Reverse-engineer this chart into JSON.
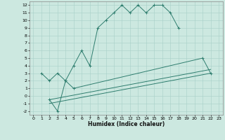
{
  "title": "",
  "xlabel": "Humidex (Indice chaleur)",
  "background_color": "#cce8e0",
  "line_color": "#2e7d6e",
  "grid_color": "#a8cfc8",
  "xlim": [
    -0.5,
    23.5
  ],
  "ylim": [
    -2.5,
    12.5
  ],
  "xticks": [
    0,
    1,
    2,
    3,
    4,
    5,
    6,
    7,
    8,
    9,
    10,
    11,
    12,
    13,
    14,
    15,
    16,
    17,
    18,
    19,
    20,
    21,
    22,
    23
  ],
  "yticks": [
    -2,
    -1,
    0,
    1,
    2,
    3,
    4,
    5,
    6,
    7,
    8,
    9,
    10,
    11,
    12
  ],
  "line1_x": [
    1,
    2,
    3,
    4,
    5,
    6,
    7,
    8,
    9,
    10,
    11,
    12,
    13,
    14,
    15,
    16,
    17,
    18
  ],
  "line1_y": [
    3,
    2,
    3,
    2,
    4,
    6,
    4,
    9,
    10,
    11,
    12,
    11,
    12,
    11,
    12,
    12,
    11,
    9
  ],
  "line2_x": [
    2,
    3,
    4,
    5,
    21,
    22
  ],
  "line2_y": [
    -0.5,
    -2,
    2,
    1,
    5,
    3
  ],
  "line3_x": [
    2,
    22
  ],
  "line3_y": [
    -0.5,
    3.5
  ],
  "line4_x": [
    2,
    22
  ],
  "line4_y": [
    -1.0,
    3.0
  ]
}
